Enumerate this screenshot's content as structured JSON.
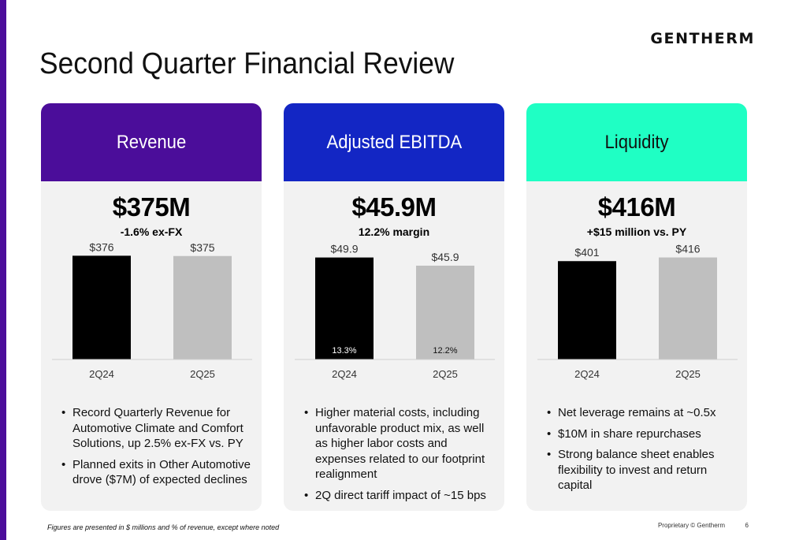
{
  "brand": {
    "logo_text": "GENTHERM",
    "accent_colors": [
      "#4b0d9a",
      "#1326c4",
      "#1fffc4"
    ]
  },
  "page": {
    "title": "Second Quarter Financial Review"
  },
  "cards": [
    {
      "header": "Revenue",
      "header_color": "#4b0d9a",
      "header_text_color": "#ffffff",
      "big_value": "$375M",
      "sub_value": "-1.6% ex-FX",
      "bullets": [
        "Record Quarterly Revenue for Automotive Climate and Comfort Solutions, up 2.5% ex-FX vs. PY",
        "Planned exits in Other Automotive drove ($7M) of expected declines"
      ]
    },
    {
      "header": "Adjusted EBITDA",
      "header_color": "#1326c4",
      "header_text_color": "#ffffff",
      "big_value": "$45.9M",
      "sub_value": "12.2% margin",
      "bullets": [
        "Higher material costs, including unfavorable product mix, as well as higher labor costs and expenses related to our footprint realignment",
        "2Q direct tariff impact of ~15 bps"
      ]
    },
    {
      "header": "Liquidity",
      "header_color": "#1fffc4",
      "header_text_color": "#111111",
      "big_value": "$416M",
      "sub_value": "+$15 million vs. PY",
      "bullets": [
        "Net leverage remains at ~0.5x",
        "$10M in share repurchases",
        "Strong balance sheet enables flexibility to invest and return capital"
      ]
    }
  ],
  "chart_data": [
    {
      "type": "bar",
      "categories": [
        "2Q24",
        "2Q25"
      ],
      "values": [
        376,
        375
      ],
      "value_labels": [
        "$376",
        "$375"
      ],
      "inner_labels": [
        "",
        ""
      ],
      "bar_colors": [
        "#000000",
        "#bfbfbf"
      ],
      "ylim": [
        0,
        400
      ]
    },
    {
      "type": "bar",
      "categories": [
        "2Q24",
        "2Q25"
      ],
      "values": [
        49.9,
        45.9
      ],
      "value_labels": [
        "$49.9",
        "$45.9"
      ],
      "inner_labels": [
        "13.3%",
        "12.2%"
      ],
      "bar_colors": [
        "#000000",
        "#bfbfbf"
      ],
      "ylim": [
        0,
        54
      ]
    },
    {
      "type": "bar",
      "categories": [
        "2Q24",
        "2Q25"
      ],
      "values": [
        401,
        416
      ],
      "value_labels": [
        "$401",
        "$416"
      ],
      "inner_labels": [
        "",
        ""
      ],
      "bar_colors": [
        "#000000",
        "#bfbfbf"
      ],
      "ylim": [
        0,
        450
      ]
    }
  ],
  "footer": {
    "note": "Figures are presented in $ millions and % of revenue, except where noted",
    "proprietary": "Proprietary © Gentherm",
    "page_number": "6"
  }
}
